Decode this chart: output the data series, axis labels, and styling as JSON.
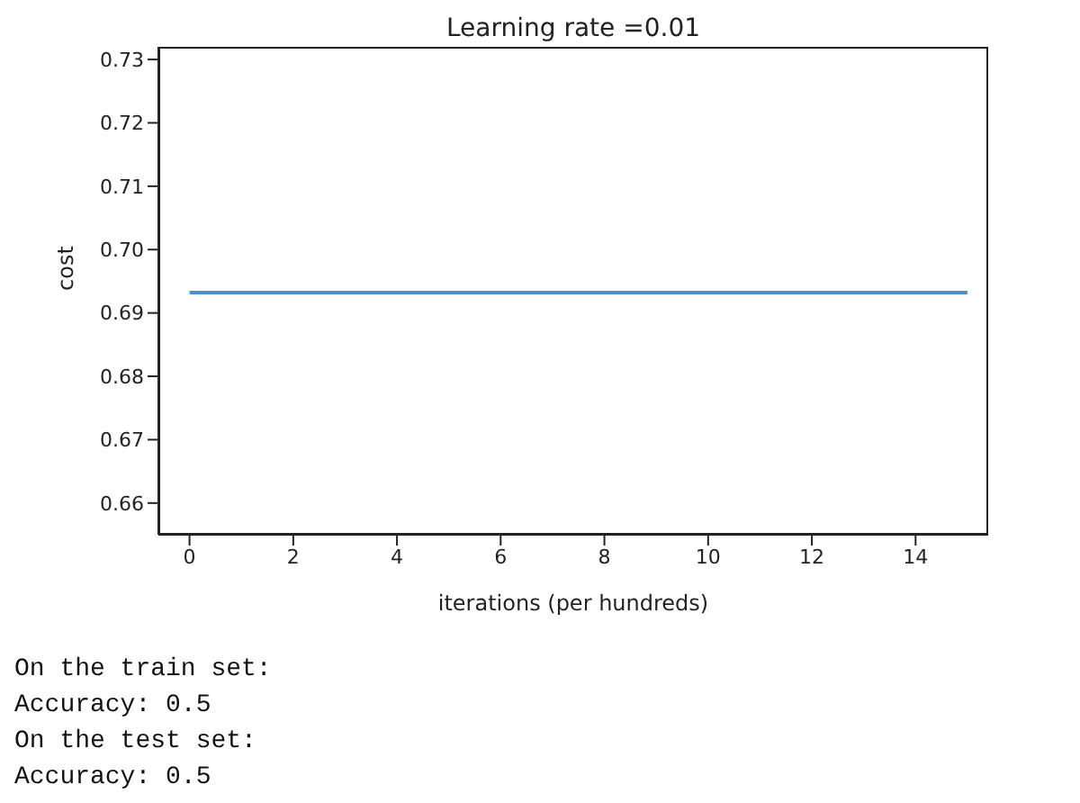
{
  "chart_data": {
    "type": "line",
    "title": "Learning rate =0.01",
    "xlabel": "iterations (per hundreds)",
    "ylabel": "cost",
    "x": [
      0,
      15
    ],
    "series": [
      {
        "color": "#4f8fc6",
        "values": [
          0.6932,
          0.6932
        ]
      }
    ],
    "xlim": [
      -0.6,
      15.4
    ],
    "xticks": [
      0,
      2,
      4,
      6,
      8,
      10,
      12,
      14
    ],
    "ylim": [
      0.655,
      0.732
    ],
    "yticks": [
      {
        "value": 0.66,
        "label": "0.66"
      },
      {
        "value": 0.67,
        "label": "0.67"
      },
      {
        "value": 0.68,
        "label": "0.68"
      },
      {
        "value": 0.69,
        "label": "0.69"
      },
      {
        "value": 0.7,
        "label": "0.70"
      },
      {
        "value": 0.71,
        "label": "0.71"
      },
      {
        "value": 0.72,
        "label": "0.72"
      },
      {
        "value": 0.73,
        "label": "0.73"
      }
    ],
    "grid": false,
    "legend": false,
    "marker": "none",
    "line_style": "solid",
    "annotations": [
      "On the train set:",
      "Accuracy: 0.5",
      "On the test set:",
      "Accuracy: 0.5"
    ]
  }
}
